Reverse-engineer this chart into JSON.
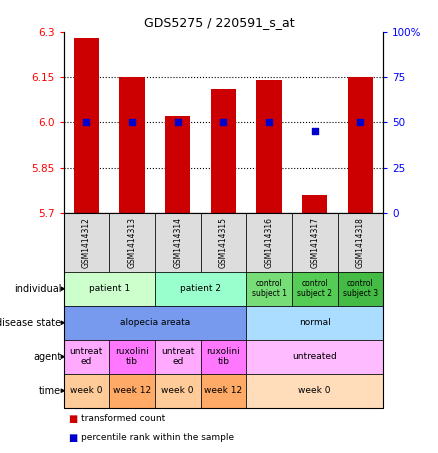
{
  "title": "GDS5275 / 220591_s_at",
  "samples": [
    "GSM1414312",
    "GSM1414313",
    "GSM1414314",
    "GSM1414315",
    "GSM1414316",
    "GSM1414317",
    "GSM1414318"
  ],
  "bar_values": [
    6.28,
    6.15,
    6.02,
    6.11,
    6.14,
    5.76,
    6.15
  ],
  "dot_values": [
    50,
    50,
    50,
    50,
    50,
    45,
    50
  ],
  "ylim_left": [
    5.7,
    6.3
  ],
  "ylim_right": [
    0,
    100
  ],
  "yticks_left": [
    5.7,
    5.85,
    6.0,
    6.15,
    6.3
  ],
  "yticks_right": [
    0,
    25,
    50,
    75,
    100
  ],
  "ytick_labels_right": [
    "0",
    "25",
    "50",
    "75",
    "100%"
  ],
  "hlines": [
    5.85,
    6.0,
    6.15
  ],
  "bar_color": "#cc0000",
  "dot_color": "#0000cc",
  "row_labels": [
    "individual",
    "disease state",
    "agent",
    "time"
  ],
  "individual_cells": [
    {
      "text": "patient 1",
      "cols": [
        0,
        1
      ],
      "color": "#ccffcc"
    },
    {
      "text": "patient 2",
      "cols": [
        2,
        3
      ],
      "color": "#99ffcc"
    },
    {
      "text": "control\nsubject 1",
      "cols": [
        4
      ],
      "color": "#77dd77"
    },
    {
      "text": "control\nsubject 2",
      "cols": [
        5
      ],
      "color": "#55cc55"
    },
    {
      "text": "control\nsubject 3",
      "cols": [
        6
      ],
      "color": "#44bb44"
    }
  ],
  "disease_cells": [
    {
      "text": "alopecia areata",
      "cols": [
        0,
        1,
        2,
        3
      ],
      "color": "#7799ee"
    },
    {
      "text": "normal",
      "cols": [
        4,
        5,
        6
      ],
      "color": "#aaddff"
    }
  ],
  "agent_cells": [
    {
      "text": "untreat\ned",
      "cols": [
        0
      ],
      "color": "#ffaaff"
    },
    {
      "text": "ruxolini\ntib",
      "cols": [
        1
      ],
      "color": "#ff77ff"
    },
    {
      "text": "untreat\ned",
      "cols": [
        2
      ],
      "color": "#ffaaff"
    },
    {
      "text": "ruxolini\ntib",
      "cols": [
        3
      ],
      "color": "#ff77ff"
    },
    {
      "text": "untreated",
      "cols": [
        4,
        5,
        6
      ],
      "color": "#ffbbff"
    }
  ],
  "time_cells": [
    {
      "text": "week 0",
      "cols": [
        0
      ],
      "color": "#ffcc99"
    },
    {
      "text": "week 12",
      "cols": [
        1
      ],
      "color": "#ffaa66"
    },
    {
      "text": "week 0",
      "cols": [
        2
      ],
      "color": "#ffcc99"
    },
    {
      "text": "week 12",
      "cols": [
        3
      ],
      "color": "#ffaa66"
    },
    {
      "text": "week 0",
      "cols": [
        4,
        5,
        6
      ],
      "color": "#ffddbb"
    }
  ],
  "sample_box_color": "#dddddd",
  "legend_items": [
    {
      "label": "transformed count",
      "color": "#cc0000"
    },
    {
      "label": "percentile rank within the sample",
      "color": "#0000cc"
    }
  ]
}
